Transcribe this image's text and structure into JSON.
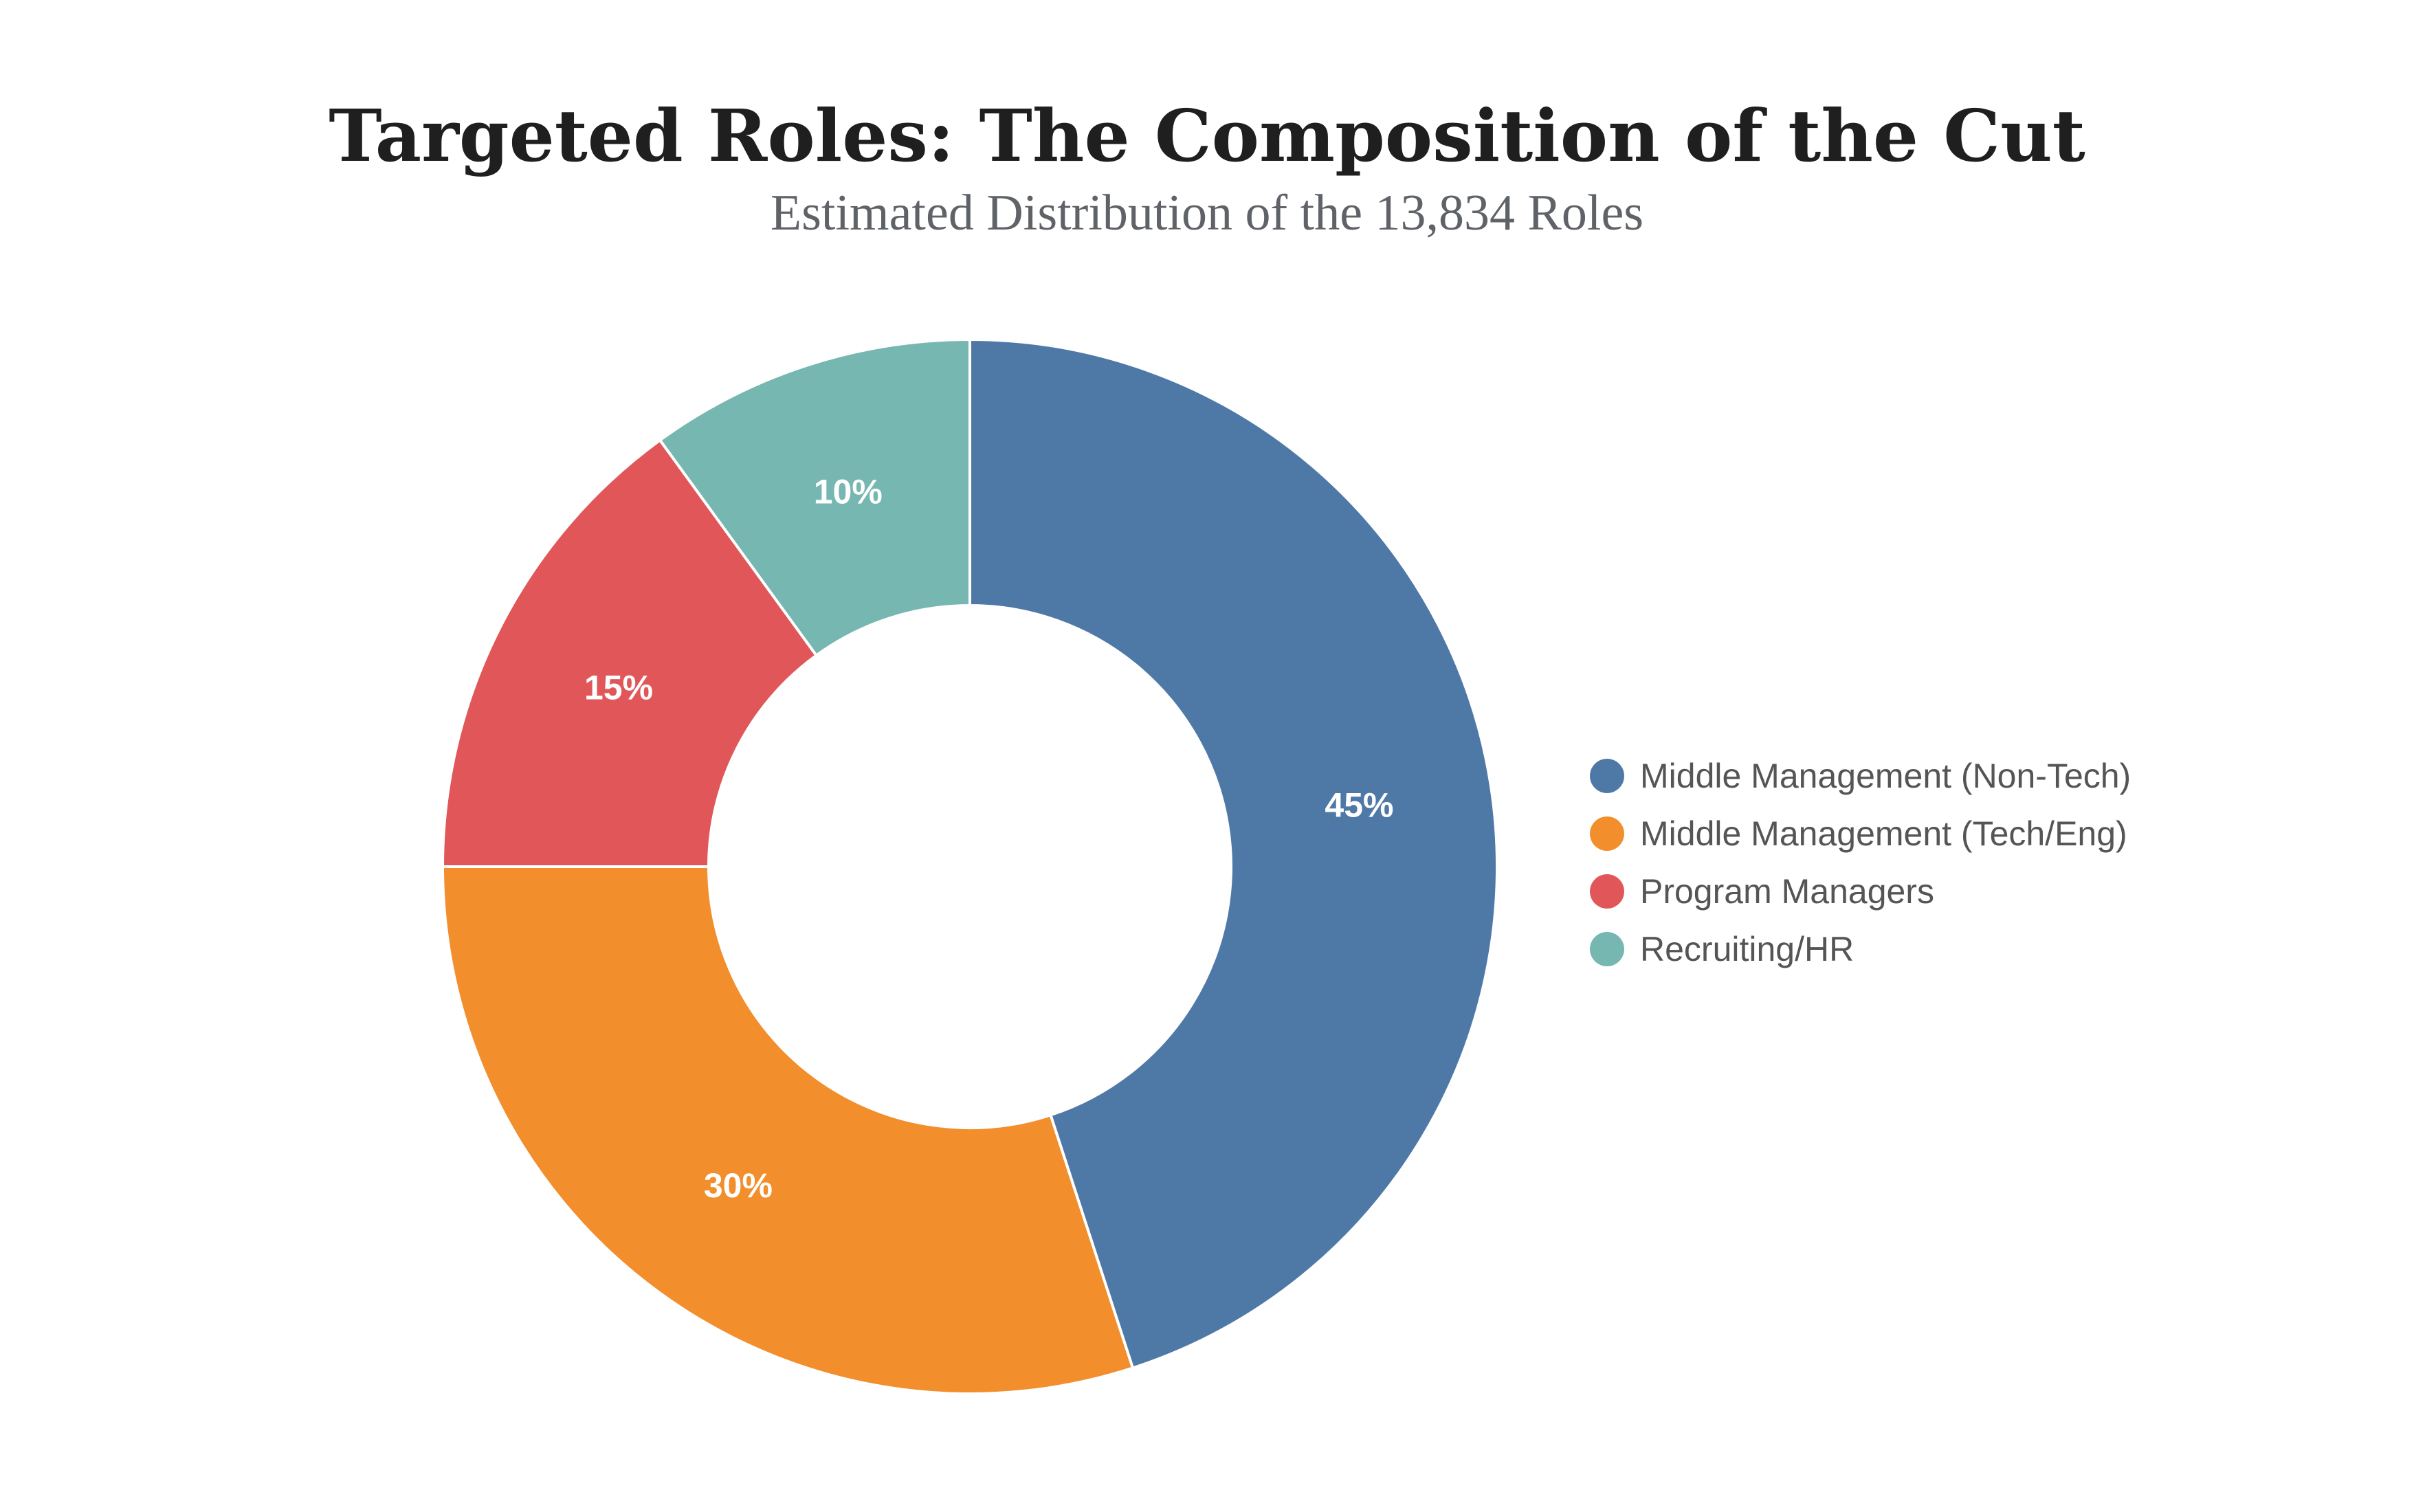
{
  "chart_data": {
    "type": "pie",
    "variant": "donut",
    "title": "Targeted Roles: The Composition of the Cut",
    "subtitle": "Estimated Distribution of the 13,834 Roles",
    "legend_position": "right",
    "categories": [
      "Middle Management (Non-Tech)",
      "Middle Management (Tech/Eng)",
      "Program Managers",
      "Recruiting/HR"
    ],
    "values": [
      45,
      30,
      15,
      10
    ],
    "labels": [
      "45%",
      "30%",
      "15%",
      "10%"
    ],
    "colors": [
      "#4e79a7",
      "#f28e2c",
      "#e15759",
      "#76b7b2"
    ]
  }
}
